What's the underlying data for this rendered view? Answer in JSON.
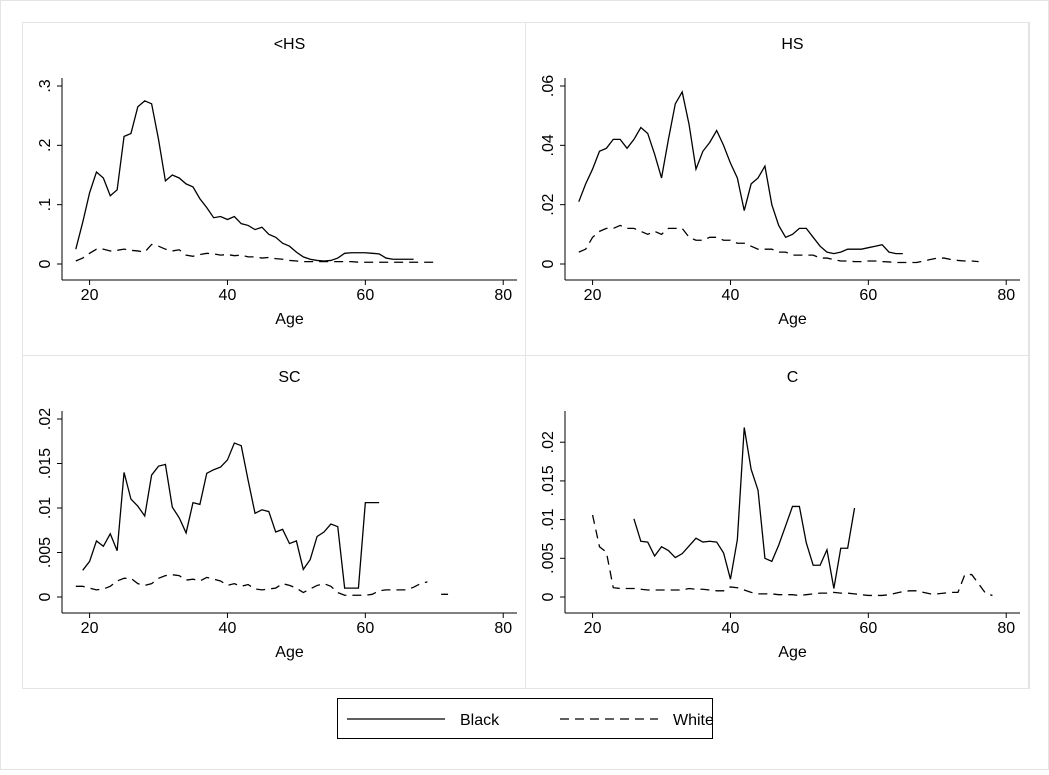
{
  "chart_data": [
    {
      "type": "line",
      "title": "<HS",
      "x_label": "Age",
      "x": [
        18,
        19,
        20,
        21,
        22,
        23,
        24,
        25,
        26,
        27,
        28,
        29,
        30,
        31,
        32,
        33,
        34,
        35,
        36,
        37,
        38,
        39,
        40,
        41,
        42,
        43,
        44,
        45,
        46,
        47,
        48,
        49,
        50,
        51,
        52,
        53,
        54,
        55,
        56,
        57,
        58,
        59,
        60,
        61,
        62,
        63,
        64,
        65,
        66,
        67,
        68,
        69,
        70
      ],
      "series": [
        {
          "name": "Black",
          "color": "#000000",
          "values": [
            0.025,
            0.07,
            0.12,
            0.155,
            0.145,
            0.115,
            0.125,
            0.215,
            0.22,
            0.265,
            0.275,
            0.27,
            0.21,
            0.14,
            0.15,
            0.145,
            0.135,
            0.13,
            0.11,
            0.095,
            0.078,
            0.08,
            0.075,
            0.08,
            0.068,
            0.065,
            0.058,
            0.062,
            0.05,
            0.045,
            0.035,
            0.03,
            0.02,
            0.012,
            0.008,
            0.006,
            0.005,
            0.006,
            0.01,
            0.018,
            0.019,
            0.019,
            0.019,
            0.018,
            0.017,
            0.01,
            0.008,
            0.008,
            0.008,
            0.008,
            null,
            null,
            null
          ]
        },
        {
          "name": "White",
          "color": "#000000",
          "values": [
            0.005,
            0.01,
            0.018,
            0.025,
            0.025,
            0.022,
            0.023,
            0.025,
            0.023,
            0.022,
            0.02,
            0.033,
            0.03,
            0.025,
            0.022,
            0.024,
            0.015,
            0.013,
            0.016,
            0.018,
            0.017,
            0.015,
            0.016,
            0.014,
            0.015,
            0.012,
            0.012,
            0.01,
            0.011,
            0.009,
            0.008,
            0.006,
            0.005,
            0.004,
            0.004,
            0.004,
            0.004,
            0.004,
            0.004,
            0.004,
            0.004,
            0.003,
            0.003,
            0.003,
            0.003,
            0.003,
            0.003,
            0.003,
            0.003,
            0.003,
            0.003,
            0.003,
            0.003
          ]
        }
      ],
      "xlim": [
        16,
        82
      ],
      "xticks": [
        20,
        40,
        60,
        80
      ],
      "ylim": [
        0,
        0.3
      ],
      "yticks": [
        0,
        {
          "value": 0.1,
          "label": ".1"
        },
        {
          "value": 0.2,
          "label": ".2"
        },
        {
          "value": 0.3,
          "label": ".3"
        }
      ]
    },
    {
      "type": "line",
      "title": "HS",
      "x_label": "Age",
      "x": [
        18,
        19,
        20,
        21,
        22,
        23,
        24,
        25,
        26,
        27,
        28,
        29,
        30,
        31,
        32,
        33,
        34,
        35,
        36,
        37,
        38,
        39,
        40,
        41,
        42,
        43,
        44,
        45,
        46,
        47,
        48,
        49,
        50,
        51,
        52,
        53,
        54,
        55,
        56,
        57,
        58,
        59,
        60,
        61,
        62,
        63,
        64,
        65,
        66,
        67,
        68,
        69,
        70,
        71,
        72,
        73,
        74,
        75,
        76
      ],
      "series": [
        {
          "name": "Black",
          "color": "#000000",
          "values": [
            0.021,
            0.027,
            0.032,
            0.038,
            0.039,
            0.042,
            0.042,
            0.039,
            0.042,
            0.046,
            0.044,
            0.037,
            0.029,
            0.042,
            0.054,
            0.058,
            0.047,
            0.032,
            0.038,
            0.041,
            0.045,
            0.04,
            0.034,
            0.029,
            0.018,
            0.027,
            0.029,
            0.033,
            0.02,
            0.013,
            0.009,
            0.01,
            0.012,
            0.012,
            0.009,
            0.006,
            0.004,
            0.0035,
            0.004,
            0.005,
            0.005,
            0.005,
            0.0055,
            0.006,
            0.0065,
            0.004,
            0.0035,
            0.0035,
            null,
            null,
            null,
            null,
            null,
            null,
            null,
            null,
            null,
            null,
            null
          ]
        },
        {
          "name": "White",
          "color": "#000000",
          "values": [
            0.004,
            0.005,
            0.009,
            0.011,
            0.012,
            0.012,
            0.013,
            0.012,
            0.012,
            0.011,
            0.01,
            0.011,
            0.01,
            0.012,
            0.012,
            0.012,
            0.009,
            0.008,
            0.008,
            0.009,
            0.009,
            0.008,
            0.008,
            0.007,
            0.007,
            0.006,
            0.005,
            0.005,
            0.005,
            0.004,
            0.004,
            0.003,
            0.003,
            0.003,
            0.003,
            0.002,
            0.002,
            0.0015,
            0.001,
            0.001,
            0.0008,
            0.0008,
            0.001,
            0.001,
            0.0008,
            0.0007,
            0.0005,
            0.0005,
            0.0005,
            0.0005,
            0.001,
            0.0015,
            0.002,
            0.002,
            0.0015,
            0.0012,
            0.001,
            0.001,
            0.0008
          ]
        }
      ],
      "xlim": [
        16,
        82
      ],
      "xticks": [
        20,
        40,
        60,
        80
      ],
      "ylim": [
        0,
        0.06
      ],
      "yticks": [
        0,
        {
          "value": 0.02,
          "label": ".02"
        },
        {
          "value": 0.04,
          "label": ".04"
        },
        {
          "value": 0.06,
          "label": ".06"
        }
      ]
    },
    {
      "type": "line",
      "title": "SC",
      "x_label": "Age",
      "x": [
        18,
        19,
        20,
        21,
        22,
        23,
        24,
        25,
        26,
        27,
        28,
        29,
        30,
        31,
        32,
        33,
        34,
        35,
        36,
        37,
        38,
        39,
        40,
        41,
        42,
        43,
        44,
        45,
        46,
        47,
        48,
        49,
        50,
        51,
        52,
        53,
        54,
        55,
        56,
        57,
        58,
        59,
        60,
        61,
        62,
        63,
        64,
        65,
        66,
        67,
        68,
        69,
        70,
        71,
        72
      ],
      "series": [
        {
          "name": "Black",
          "color": "#000000",
          "values": [
            null,
            0.003,
            0.004,
            0.0063,
            0.0057,
            0.0071,
            0.0052,
            0.014,
            0.011,
            0.0102,
            0.0091,
            0.0137,
            0.0147,
            0.0149,
            0.0101,
            0.0089,
            0.0072,
            0.0106,
            0.0104,
            0.0139,
            0.0143,
            0.0146,
            0.0154,
            0.0173,
            0.017,
            0.0131,
            0.0094,
            0.0098,
            0.0096,
            0.0073,
            0.0076,
            0.006,
            0.0063,
            0.0031,
            0.0042,
            0.0068,
            0.0073,
            0.0082,
            0.0079,
            0.001,
            0.001,
            0.001,
            0.0106,
            0.0106,
            0.0106,
            null,
            null,
            null,
            null,
            null,
            null,
            null,
            null,
            null,
            null
          ]
        },
        {
          "name": "White",
          "color": "#000000",
          "values": [
            0.0012,
            0.0012,
            0.001,
            0.0008,
            0.0009,
            0.0012,
            0.0018,
            0.0021,
            0.0021,
            0.0015,
            0.0013,
            0.0015,
            0.0021,
            0.0024,
            0.0025,
            0.0024,
            0.0019,
            0.002,
            0.0018,
            0.0022,
            0.002,
            0.0018,
            0.0013,
            0.0015,
            0.0012,
            0.0014,
            0.0009,
            0.0008,
            0.0009,
            0.001,
            0.0015,
            0.0013,
            0.001,
            0.0005,
            0.0009,
            0.0013,
            0.0015,
            0.0012,
            0.0005,
            0.0002,
            0.0002,
            0.0002,
            0.0002,
            0.0003,
            0.0007,
            0.0008,
            0.0008,
            0.0008,
            0.0008,
            0.0011,
            0.0015,
            0.0017,
            null,
            0.0003,
            0.0003
          ]
        }
      ],
      "xlim": [
        16,
        82
      ],
      "xticks": [
        20,
        40,
        60,
        80
      ],
      "ylim": [
        0,
        0.02
      ],
      "yticks": [
        0,
        {
          "value": 0.005,
          "label": ".005"
        },
        {
          "value": 0.01,
          "label": ".01"
        },
        {
          "value": 0.015,
          "label": ".015"
        },
        {
          "value": 0.02,
          "label": ".02"
        }
      ]
    },
    {
      "type": "line",
      "title": "C",
      "x_label": "Age",
      "x": [
        20,
        21,
        22,
        23,
        24,
        25,
        26,
        27,
        28,
        29,
        30,
        31,
        32,
        33,
        34,
        35,
        36,
        37,
        38,
        39,
        40,
        41,
        42,
        43,
        44,
        45,
        46,
        47,
        48,
        49,
        50,
        51,
        52,
        53,
        54,
        55,
        56,
        57,
        58,
        59,
        60,
        61,
        62,
        63,
        64,
        65,
        66,
        67,
        68,
        69,
        70,
        71,
        72,
        73,
        74,
        75,
        76,
        77,
        78
      ],
      "series": [
        {
          "name": "Black",
          "color": "#000000",
          "values": [
            null,
            null,
            null,
            null,
            null,
            null,
            0.0101,
            0.0072,
            0.0071,
            0.0053,
            0.0065,
            0.006,
            0.0051,
            0.0056,
            0.0066,
            0.0076,
            0.0071,
            0.0072,
            0.0071,
            0.0057,
            0.0023,
            0.0074,
            0.0219,
            0.0165,
            0.0138,
            0.005,
            0.0046,
            0.0067,
            0.0092,
            0.0117,
            0.0117,
            0.007,
            0.0041,
            0.0041,
            0.0061,
            0.0011,
            0.0063,
            0.0063,
            0.0115,
            null,
            null,
            null,
            null,
            null,
            null,
            null,
            null,
            null,
            null,
            null,
            null,
            null,
            null,
            null,
            null,
            null,
            null,
            null,
            null
          ]
        },
        {
          "name": "White",
          "color": "#000000",
          "values": [
            0.0106,
            0.0065,
            0.0058,
            0.0012,
            0.0011,
            0.0011,
            0.0011,
            0.001,
            0.0009,
            0.0009,
            0.0009,
            0.0009,
            0.0009,
            0.0009,
            0.0011,
            0.001,
            0.001,
            0.0009,
            0.0008,
            0.0008,
            0.0013,
            0.0012,
            0.0009,
            0.0006,
            0.0004,
            0.0004,
            0.0004,
            0.0003,
            0.0003,
            0.0003,
            0.0002,
            0.0003,
            0.0004,
            0.0005,
            0.0005,
            0.0006,
            0.0005,
            0.0005,
            0.0004,
            0.0003,
            0.0002,
            0.0002,
            0.0002,
            0.0003,
            0.0005,
            0.0007,
            0.0008,
            0.0008,
            0.0006,
            0.0004,
            0.0004,
            0.0005,
            0.0006,
            0.0006,
            0.0029,
            0.0029,
            0.0017,
            0.0005,
            0.0002
          ]
        }
      ],
      "xlim": [
        16,
        82
      ],
      "xticks": [
        20,
        40,
        60,
        80
      ],
      "ylim": [
        0,
        0.023
      ],
      "yticks": [
        0,
        {
          "value": 0.005,
          "label": ".005"
        },
        {
          "value": 0.01,
          "label": ".01"
        },
        {
          "value": 0.015,
          "label": ".015"
        },
        {
          "value": 0.02,
          "label": ".02"
        }
      ]
    }
  ]
}
